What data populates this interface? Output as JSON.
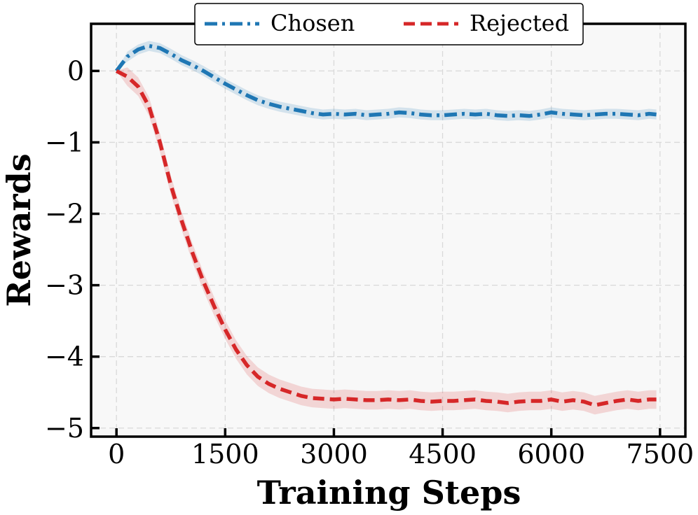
{
  "chart_data": {
    "type": "line",
    "title": "",
    "xlabel": "Training Steps",
    "ylabel": "Rewards",
    "xlim": [
      -350,
      7850
    ],
    "ylim": [
      -5.12,
      0.66
    ],
    "xticks": [
      0,
      1500,
      3000,
      4500,
      6000,
      7500
    ],
    "xtick_labels": [
      "0",
      "1500",
      "3000",
      "4500",
      "6000",
      "7500"
    ],
    "yticks": [
      0,
      -1,
      -2,
      -3,
      -4,
      -5
    ],
    "ytick_labels": [
      "0",
      "−1",
      "−2",
      "−3",
      "−4",
      "−5"
    ],
    "grid": true,
    "legend_position": "top-center",
    "series": [
      {
        "name": "Chosen",
        "color": "#1f77b4",
        "linestyle": "dashdot",
        "band": 0.07,
        "x": [
          0,
          150,
          300,
          450,
          600,
          750,
          900,
          1050,
          1200,
          1350,
          1500,
          1650,
          1800,
          1950,
          2100,
          2250,
          2400,
          2550,
          2700,
          2850,
          3000,
          3150,
          3300,
          3450,
          3600,
          3750,
          3900,
          4050,
          4200,
          4350,
          4500,
          4650,
          4800,
          4950,
          5100,
          5250,
          5400,
          5550,
          5700,
          5850,
          6000,
          6150,
          6300,
          6450,
          6600,
          6750,
          6900,
          7050,
          7200,
          7350,
          7450
        ],
        "y": [
          0.0,
          0.2,
          0.3,
          0.35,
          0.32,
          0.24,
          0.15,
          0.08,
          0.0,
          -0.09,
          -0.18,
          -0.26,
          -0.34,
          -0.41,
          -0.46,
          -0.5,
          -0.53,
          -0.56,
          -0.59,
          -0.61,
          -0.6,
          -0.61,
          -0.6,
          -0.62,
          -0.61,
          -0.6,
          -0.58,
          -0.59,
          -0.61,
          -0.62,
          -0.62,
          -0.61,
          -0.6,
          -0.61,
          -0.6,
          -0.62,
          -0.63,
          -0.62,
          -0.63,
          -0.61,
          -0.58,
          -0.6,
          -0.61,
          -0.62,
          -0.61,
          -0.6,
          -0.6,
          -0.61,
          -0.62,
          -0.6,
          -0.61
        ]
      },
      {
        "name": "Rejected",
        "color": "#d62728",
        "linestyle": "dashed",
        "band": 0.13,
        "x": [
          0,
          150,
          300,
          450,
          600,
          750,
          900,
          1050,
          1200,
          1350,
          1500,
          1650,
          1800,
          1950,
          2100,
          2250,
          2400,
          2550,
          2700,
          2850,
          3000,
          3150,
          3300,
          3450,
          3600,
          3750,
          3900,
          4050,
          4200,
          4350,
          4500,
          4650,
          4800,
          4950,
          5100,
          5250,
          5400,
          5550,
          5700,
          5850,
          6000,
          6150,
          6300,
          6450,
          6600,
          6750,
          6900,
          7050,
          7200,
          7350,
          7450
        ],
        "y": [
          0.0,
          -0.08,
          -0.22,
          -0.5,
          -1.0,
          -1.6,
          -2.1,
          -2.55,
          -2.95,
          -3.3,
          -3.62,
          -3.9,
          -4.12,
          -4.28,
          -4.38,
          -4.45,
          -4.5,
          -4.55,
          -4.58,
          -4.59,
          -4.6,
          -4.59,
          -4.6,
          -4.61,
          -4.61,
          -4.6,
          -4.61,
          -4.6,
          -4.62,
          -4.63,
          -4.62,
          -4.62,
          -4.61,
          -4.6,
          -4.62,
          -4.63,
          -4.65,
          -4.63,
          -4.62,
          -4.62,
          -4.6,
          -4.63,
          -4.61,
          -4.63,
          -4.68,
          -4.65,
          -4.62,
          -4.6,
          -4.62,
          -4.6,
          -4.6
        ]
      }
    ]
  }
}
